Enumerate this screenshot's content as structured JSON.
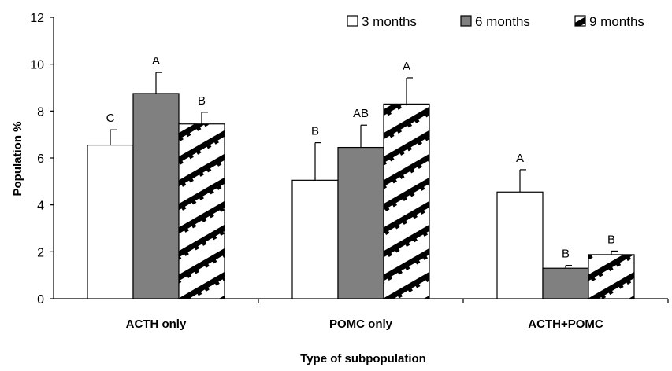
{
  "chart_data": {
    "type": "bar",
    "categories": [
      "ACTH only",
      "POMC only",
      "ACTH+POMC"
    ],
    "series": [
      {
        "name": "3 months",
        "values": [
          6.55,
          5.05,
          4.55
        ],
        "errors": [
          0.65,
          1.6,
          0.95
        ],
        "letters": [
          "C",
          "B",
          "A"
        ],
        "fill": "#ffffff",
        "pattern": "none"
      },
      {
        "name": "6 months",
        "values": [
          8.75,
          6.45,
          1.3
        ],
        "errors": [
          0.9,
          0.95,
          0.12
        ],
        "letters": [
          "A",
          "AB",
          "B"
        ],
        "fill": "#808080",
        "pattern": "none"
      },
      {
        "name": "9 months",
        "values": [
          7.45,
          8.3,
          1.88
        ],
        "errors": [
          0.5,
          1.12,
          0.15
        ],
        "letters": [
          "B",
          "A",
          "B"
        ],
        "fill": "#ffffff",
        "pattern": "diagonal-black-steps"
      }
    ],
    "xlabel": "Type of subpopulation",
    "ylabel": "Population %",
    "ylim": [
      0,
      12
    ],
    "yticks": [
      "0",
      "2",
      "4",
      "6",
      "8",
      "10",
      "12"
    ],
    "grid": false,
    "legend_position": "top-right"
  }
}
